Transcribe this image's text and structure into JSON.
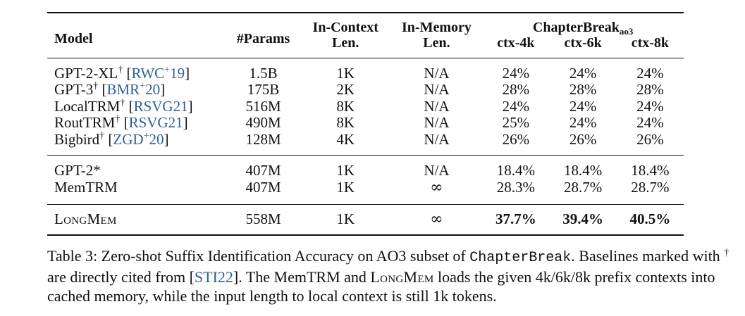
{
  "table": {
    "headers": {
      "model": "Model",
      "params": "#Params",
      "in_context_line1": "In-Context",
      "in_context_line2": "Len.",
      "in_memory_line1": "In-Memory",
      "in_memory_line2": "Len.",
      "chapterbreak_main": "ChapterBreak",
      "chapterbreak_sub": "ao3",
      "ctx4": "ctx-4k",
      "ctx6": "ctx-6k",
      "ctx8": "ctx-8k"
    },
    "rows": [
      {
        "model_name": "GPT-2-XL",
        "model_mark": "†",
        "citation_open": " [",
        "citation_text": "RWC",
        "citation_sup": "+",
        "citation_year": "19",
        "citation_close": "]",
        "params": "1.5B",
        "ictx": "1K",
        "imem": "N/A",
        "ctx4": "24%",
        "ctx6": "24%",
        "ctx8": "24%"
      },
      {
        "model_name": "GPT-3",
        "model_mark": "†",
        "citation_open": " [",
        "citation_text": "BMR",
        "citation_sup": "+",
        "citation_year": "20",
        "citation_close": "]",
        "params": "175B",
        "ictx": "2K",
        "imem": "N/A",
        "ctx4": "28%",
        "ctx6": "28%",
        "ctx8": "28%"
      },
      {
        "model_name": "LocalTRM",
        "model_mark": "†",
        "citation_open": " [",
        "citation_text": "RSVG21",
        "citation_sup": "",
        "citation_year": "",
        "citation_close": "]",
        "params": "516M",
        "ictx": "8K",
        "imem": "N/A",
        "ctx4": "24%",
        "ctx6": "24%",
        "ctx8": "24%"
      },
      {
        "model_name": "RoutTRM",
        "model_mark": "†",
        "citation_open": " [",
        "citation_text": "RSVG21",
        "citation_sup": "",
        "citation_year": "",
        "citation_close": "]",
        "params": "490M",
        "ictx": "8K",
        "imem": "N/A",
        "ctx4": "25%",
        "ctx6": "24%",
        "ctx8": "24%"
      },
      {
        "model_name": "Bigbird",
        "model_mark": "†",
        "citation_open": " [",
        "citation_text": "ZGD",
        "citation_sup": "+",
        "citation_year": "20",
        "citation_close": "]",
        "params": "128M",
        "ictx": "4K",
        "imem": "N/A",
        "ctx4": "26%",
        "ctx6": "26%",
        "ctx8": "26%"
      }
    ],
    "rows2": [
      {
        "model_name": "GPT-2*",
        "params": "407M",
        "ictx": "1K",
        "imem": "N/A",
        "ctx4": "18.4%",
        "ctx6": "18.4%",
        "ctx8": "18.4%"
      },
      {
        "model_name": "MemTRM",
        "params": "407M",
        "ictx": "1K",
        "imem": "∞",
        "ctx4": "28.3%",
        "ctx6": "28.7%",
        "ctx8": "28.7%"
      }
    ],
    "final_row": {
      "model_name": "LongMem",
      "params": "558M",
      "ictx": "1K",
      "imem": "∞",
      "ctx4": "37.7%",
      "ctx6": "39.4%",
      "ctx8": "40.5%"
    }
  },
  "caption": {
    "label": "Table 3:",
    "text1": " Zero-shot Suffix Identification Accuracy on AO3 subset of ",
    "dataset": "ChapterBreak",
    "text2": ". Baselines marked with ",
    "dagger": "†",
    "text3": " are directly cited from [",
    "cite": "STI22",
    "text4": "]. The MemTRM and ",
    "longmem": "LongMem",
    "text5": " loads the given 4k/6k/8k prefix contexts into cached memory, while the input length to local context is still 1k tokens."
  }
}
